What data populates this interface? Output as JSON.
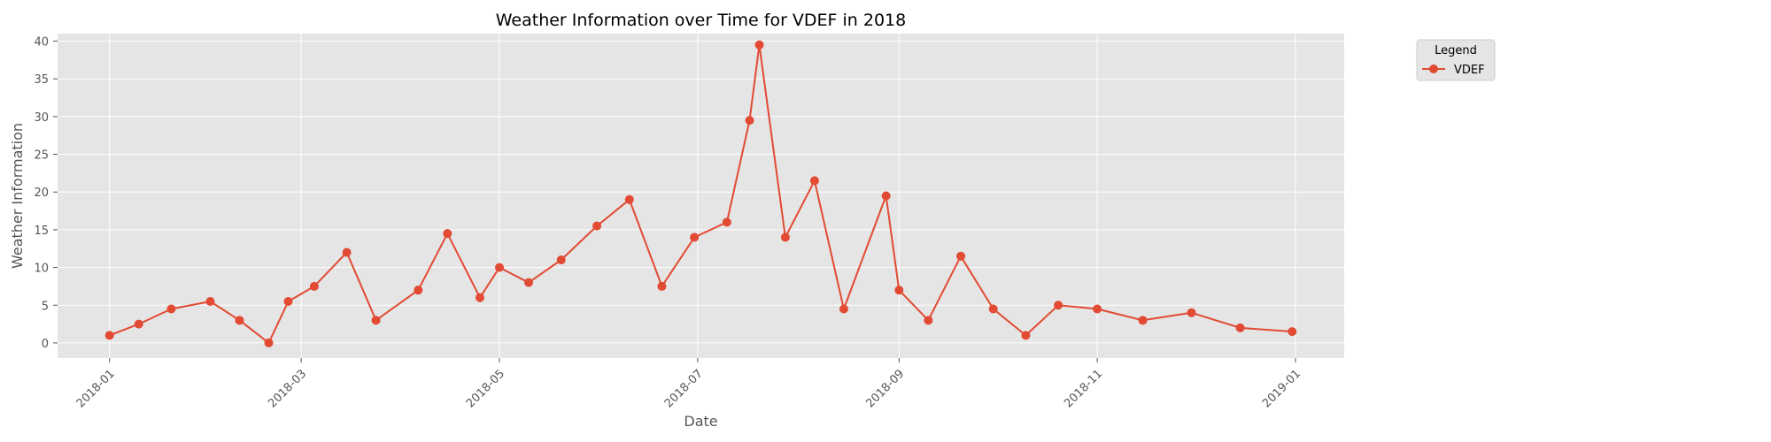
{
  "chart_data": {
    "type": "line",
    "title": "Weather Information over Time for VDEF in 2018",
    "xlabel": "Date",
    "ylabel": "Weather Information",
    "x_range": [
      "2017-12-16",
      "2019-01-16"
    ],
    "x_ticks": [
      "2018-01",
      "2018-03",
      "2018-05",
      "2018-07",
      "2018-09",
      "2018-11",
      "2019-01"
    ],
    "ylim": [
      -2,
      41
    ],
    "y_ticks": [
      0,
      5,
      10,
      15,
      20,
      25,
      30,
      35,
      40
    ],
    "grid": true,
    "legend": {
      "title": "Legend",
      "placement": "outside-top-right"
    },
    "series": [
      {
        "name": "VDEF",
        "color": "#E24A33",
        "x": [
          "2018-01-01",
          "2018-01-10",
          "2018-01-20",
          "2018-02-01",
          "2018-02-10",
          "2018-02-19",
          "2018-02-25",
          "2018-03-05",
          "2018-03-15",
          "2018-03-24",
          "2018-04-06",
          "2018-04-15",
          "2018-04-25",
          "2018-05-01",
          "2018-05-10",
          "2018-05-20",
          "2018-05-31",
          "2018-06-10",
          "2018-06-20",
          "2018-06-30",
          "2018-07-10",
          "2018-07-17",
          "2018-07-20",
          "2018-07-28",
          "2018-08-06",
          "2018-08-15",
          "2018-08-28",
          "2018-09-01",
          "2018-09-10",
          "2018-09-20",
          "2018-09-30",
          "2018-10-10",
          "2018-10-20",
          "2018-11-01",
          "2018-11-15",
          "2018-11-30",
          "2018-12-15",
          "2018-12-31"
        ],
        "values": [
          1.0,
          2.5,
          4.5,
          5.5,
          3.0,
          0.0,
          5.5,
          7.5,
          12.0,
          3.0,
          7.0,
          14.5,
          6.0,
          10.0,
          8.0,
          11.0,
          15.5,
          19.0,
          7.5,
          14.0,
          16.0,
          29.5,
          39.5,
          14.0,
          21.5,
          4.5,
          19.5,
          7.0,
          3.0,
          11.5,
          4.5,
          1.0,
          5.0,
          4.5,
          3.0,
          4.0,
          2.0,
          1.5
        ]
      }
    ]
  }
}
